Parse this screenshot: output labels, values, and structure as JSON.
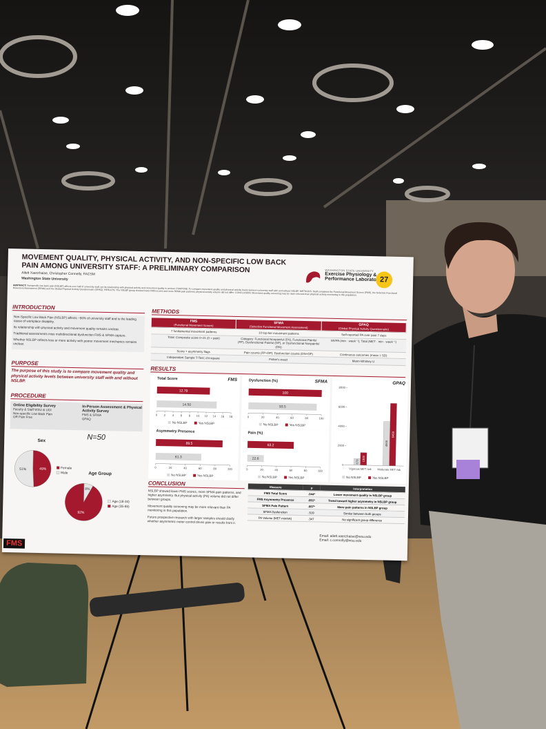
{
  "poster": {
    "title": "MOVEMENT QUALITY, PHYSICAL ACTIVITY, AND NON-SPECIFIC LOW BACK PAIN AMONG UNIVERSITY STAFF: A PRELIMINARY COMPARISON",
    "authors": "Ailett Xaerzhaise, Christopher Connelly, FACSM",
    "affiliation": "Washington State University",
    "logo": {
      "line1": "WASHINGTON STATE UNIVERSITY",
      "line2": "Exercise Physiology &",
      "line3": "Performance Laboratory"
    },
    "board_number": "27",
    "abstract": {
      "label": "ABSTRACT:",
      "text": "Nonspecific low back pain (NSLBP) affects over half of university staff, yet its relationship with physical activity and movement quality is unclear. PURPOSE: To compare movement quality and physical activity levels between university staff with and without NSLBP. METHODS: Staff completed the Functional Movement Screen (FMS), the Selective Functional Movement Assessment (SFMA) and the Global Physical Activity Questionnaire (GPAQ). RESULTS: The NSLBP group showed lower FMS scores and more SFMA pain patterns; physical activity volume did not differ. CONCLUSION: Movement quality screening may be more relevant than physical activity monitoring in this population."
    },
    "intro": {
      "heading": "INTRODUCTION",
      "bullets": [
        "Non-Specific Low Back Pain (NSLBP) affects ~56% of university staff and is the leading cause of workplace disability.",
        "Its relationship with physical activity and movement quality remains unclear.",
        "Traditional assessments miss multidirectional dysfunction FMS & SFMA capture.",
        "Whether NSLBP reflects less or more activity with poorer movement mechanics remains unclear."
      ]
    },
    "purpose": {
      "heading": "PURPOSE",
      "text": "The purpose of this study is to compare movement quality and physical activity levels between university staff with and without NSLBP."
    },
    "procedure": {
      "heading": "PROCEDURE",
      "steps": [
        {
          "title": "Online Eligibility Survey",
          "lines": [
            "Faculty & Staff WSU & UOI",
            "Non-specific Low Back Pain",
            "OR Pain Free"
          ]
        },
        {
          "title": "In-Person Assessment & Physical Activity Survey",
          "lines": [
            "FMS & SFMA",
            "GPAQ"
          ]
        }
      ],
      "sample": "N=50"
    },
    "demographics": [
      {
        "type": "pie",
        "title": "Sex",
        "categories": [
          "Female",
          "Male"
        ],
        "values": [
          49,
          51
        ],
        "value_labels": [
          "49%",
          "51%"
        ],
        "colors": [
          "#a5192e",
          "#e6e6e6"
        ]
      },
      {
        "type": "pie",
        "title": "Age Group",
        "categories": [
          "Age (18-34)",
          "Age (35-65)"
        ],
        "values": [
          8,
          92
        ],
        "value_labels": [
          "8%",
          "92%"
        ],
        "colors": [
          "#e6e6e6",
          "#a5192e"
        ]
      }
    ],
    "methods": {
      "heading": "METHODS",
      "columns": [
        [
          "FMS",
          "(Functional Movement Screen)"
        ],
        [
          "SFMA",
          "(Selective Functional Movement Assessment)"
        ],
        [
          "GPAQ",
          "(Global Physical Activity Questionnaire)"
        ]
      ],
      "rows": [
        [
          "7 fundamental movement patterns",
          "10 top-tier movement patterns",
          "Self-reported PA over past 7 days"
        ],
        [
          "Total: Composite score 0–21 (0 = pain)",
          "Category: Functional Nonpainful (FN), Functional Painful (FP), Dysfunctional Painful (DP), or Dysfunctional Nonpainful (DN)",
          "MVPA (min · week⁻¹); Total (MET · min · week⁻¹)"
        ],
        [
          "Score + asymmetry flags",
          "Pain counts (FP+DP); Dysfunction counts (DN+DP)",
          "Continuous outcomes (mean ± SD)"
        ],
        [
          "Independent Sample T-Test; chi-square",
          "Fisher's exact",
          "Mann-Whitney U"
        ]
      ]
    },
    "results": {
      "heading": "RESULTS",
      "charts": [
        {
          "type": "hbar",
          "title": "Total Score",
          "tool": "FMS",
          "xlim": [
            0,
            18
          ],
          "xticks": [
            0,
            2,
            4,
            6,
            8,
            10,
            12,
            14,
            16,
            18
          ],
          "series": [
            {
              "name": "No NSLBP",
              "color": "#d9d9d9",
              "values": [
                14.5
              ],
              "value_labels": [
                "14.50"
              ]
            },
            {
              "name": "Yes NSLBP",
              "color": "#a5192e",
              "values": [
                12.79
              ]
            }
          ]
        },
        {
          "type": "hbar",
          "title": "Asymmetry Presence",
          "xlim": [
            0,
            100
          ],
          "xticks": [
            0,
            20,
            40,
            60,
            80,
            100
          ],
          "series": [
            {
              "name": "No NSLBP",
              "color": "#d9d9d9",
              "values": [
                61.3
              ]
            },
            {
              "name": "Yes NSLBP",
              "color": "#a5192e",
              "values": [
                89.5
              ]
            }
          ]
        },
        {
          "type": "hbar",
          "title": "Dysfunction (%)",
          "tool": "SFMA",
          "xlim": [
            0,
            100
          ],
          "xticks": [
            0,
            20,
            40,
            60,
            80,
            100
          ],
          "series": [
            {
              "name": "No NSLBP",
              "color": "#d9d9d9",
              "values": [
                93.5
              ]
            },
            {
              "name": "Yes NSLBP",
              "color": "#a5192e",
              "values": [
                100
              ]
            }
          ]
        },
        {
          "type": "hbar",
          "title": "Pain (%)",
          "xlim": [
            0,
            100
          ],
          "xticks": [
            0,
            20,
            40,
            60,
            80,
            100
          ],
          "series": [
            {
              "name": "No NSLBP",
              "color": "#d9d9d9",
              "values": [
                22.6
              ]
            },
            {
              "name": "Yes NSLBP",
              "color": "#a5192e",
              "values": [
                63.2
              ]
            }
          ]
        },
        {
          "type": "vbar",
          "title": "GPAQ",
          "categories": [
            "Vigorous MET·/wk",
            "Moderate MET·/wk"
          ],
          "ylim": [
            0,
            8000
          ],
          "yticks": [
            0,
            2000,
            4000,
            6000,
            8000
          ],
          "series": [
            {
              "name": "No NSLBP",
              "color": "#d9d9d9",
              "values": [
                678,
                4566
              ]
            },
            {
              "name": "Yes NSLBP",
              "color": "#a5192e",
              "values": [
                1303,
                6459
              ]
            }
          ]
        }
      ]
    },
    "conclusion": {
      "heading": "CONCLUSION",
      "paragraphs": [
        "NSLBP showed lower FMS scores, more SFMA pain patterns, and higher asymmetry. But physical activity (PA) volume did not differ between groups.",
        "Movement quality screening may be more relevant than PA monitoring in this population.",
        "Future prospective research with larger samples should clarify whether asymmetric motor control drives pain or results from it."
      ],
      "table": {
        "header": [
          "Measure",
          "p",
          "Interpretation"
        ],
        "rows": [
          [
            "FMS Total Score",
            ".044*",
            "Lower movement quality in NSLBP group"
          ],
          [
            "FMS Asymmetry Presence",
            ".051*",
            "Trend toward higher asymmetry in NSLBP group"
          ],
          [
            "SFMA Pain Pattern",
            ".007*",
            "More pain patterns in NSLBP group"
          ],
          [
            "SFMA Dysfunction",
            ".519",
            "Similar between both groups"
          ],
          [
            "PA Volume (MET-min/wk)",
            ".347",
            "No significant group difference"
          ]
        ]
      },
      "emails": [
        "Email: ailett.xaerzhaise@wsu.edu",
        "Email: c.connolly@wsu.edu"
      ]
    },
    "footer_logo": "FMS"
  }
}
